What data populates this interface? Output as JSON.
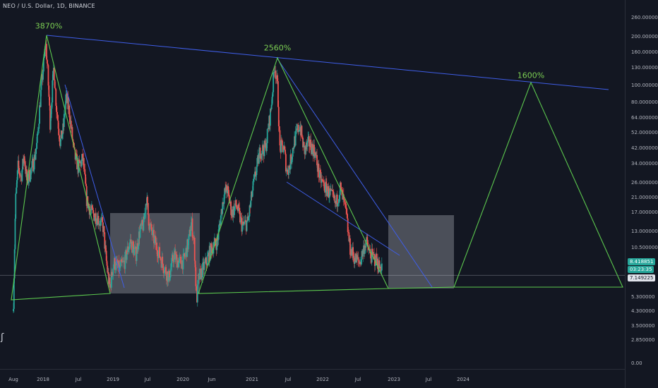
{
  "header": {
    "symbol": "NEO / U.S. Dollar, 1D, BINANCE"
  },
  "chart_data": {
    "type": "candlestick",
    "symbol": "NEO / U.S. Dollar",
    "interval": "1D",
    "exchange": "BINANCE",
    "y_scale": "log",
    "price_ticks": [
      "260.000000",
      "200.000000",
      "160.000000",
      "130.000000",
      "100.000000",
      "80.000000",
      "64.000000",
      "52.000000",
      "42.000000",
      "34.000000",
      "26.000000",
      "21.000000",
      "17.000000",
      "13.000000",
      "10.500000",
      "7.149225",
      "5.300000",
      "4.300000",
      "3.500000",
      "2.850000",
      "0.00"
    ],
    "time_ticks": [
      "Aug",
      "2018",
      "Jul",
      "2019",
      "Jul",
      "2020",
      "Jun",
      "2021",
      "Jul",
      "2022",
      "Jul",
      "2023",
      "Jul",
      "2024"
    ],
    "current_price": "8.418851",
    "countdown": "03:23:35",
    "reference_price": "7.149225",
    "price_path": [
      [
        "2017-08-01",
        5.0
      ],
      [
        "2017-08-12",
        20.0
      ],
      [
        "2017-08-25",
        32.0
      ],
      [
        "2017-09-10",
        28.0
      ],
      [
        "2017-09-25",
        38.0
      ],
      [
        "2017-10-10",
        26.0
      ],
      [
        "2017-10-28",
        30.0
      ],
      [
        "2017-11-15",
        35.0
      ],
      [
        "2017-12-01",
        45.0
      ],
      [
        "2017-12-20",
        90.0
      ],
      [
        "2018-01-15",
        180.0
      ],
      [
        "2018-01-25",
        120.0
      ],
      [
        "2018-02-06",
        60.0
      ],
      [
        "2018-02-25",
        130.0
      ],
      [
        "2018-03-10",
        75.0
      ],
      [
        "2018-03-30",
        45.0
      ],
      [
        "2018-04-15",
        55.0
      ],
      [
        "2018-04-28",
        85.0
      ],
      [
        "2018-05-15",
        70.0
      ],
      [
        "2018-06-10",
        38.0
      ],
      [
        "2018-07-01",
        32.0
      ],
      [
        "2018-07-25",
        36.0
      ],
      [
        "2018-08-15",
        20.0
      ],
      [
        "2018-09-10",
        17.0
      ],
      [
        "2018-10-10",
        16.0
      ],
      [
        "2018-11-10",
        14.0
      ],
      [
        "2018-11-25",
        9.0
      ],
      [
        "2018-12-15",
        5.9
      ],
      [
        "2019-01-05",
        8.5
      ],
      [
        "2019-02-01",
        7.8
      ],
      [
        "2019-03-01",
        8.5
      ],
      [
        "2019-04-01",
        11.5
      ],
      [
        "2019-05-01",
        9.5
      ],
      [
        "2019-05-20",
        13.0
      ],
      [
        "2019-06-10",
        14.5
      ],
      [
        "2019-06-25",
        21.0
      ],
      [
        "2019-07-10",
        14.5
      ],
      [
        "2019-08-01",
        12.0
      ],
      [
        "2019-09-01",
        9.5
      ],
      [
        "2019-09-25",
        8.0
      ],
      [
        "2019-10-20",
        6.9
      ],
      [
        "2019-11-15",
        9.5
      ],
      [
        "2019-12-10",
        8.5
      ],
      [
        "2020-01-05",
        8.7
      ],
      [
        "2020-02-01",
        11.5
      ],
      [
        "2020-02-15",
        15.0
      ],
      [
        "2020-03-01",
        11.0
      ],
      [
        "2020-03-13",
        5.0
      ],
      [
        "2020-03-25",
        6.9
      ],
      [
        "2020-05-01",
        8.5
      ],
      [
        "2020-06-01",
        10.5
      ],
      [
        "2020-07-01",
        11.5
      ],
      [
        "2020-08-01",
        21.0
      ],
      [
        "2020-08-20",
        24.0
      ],
      [
        "2020-09-15",
        17.0
      ],
      [
        "2020-10-10",
        19.0
      ],
      [
        "2020-11-10",
        14.0
      ],
      [
        "2020-12-10",
        15.0
      ],
      [
        "2021-01-10",
        26.0
      ],
      [
        "2021-02-10",
        40.0
      ],
      [
        "2021-03-10",
        42.0
      ],
      [
        "2021-04-05",
        70.0
      ],
      [
        "2021-04-25",
        135.0
      ],
      [
        "2021-05-10",
        95.0
      ],
      [
        "2021-05-20",
        42.0
      ],
      [
        "2021-06-10",
        42.0
      ],
      [
        "2021-06-25",
        30.0
      ],
      [
        "2021-07-10",
        33.0
      ],
      [
        "2021-08-01",
        45.0
      ],
      [
        "2021-09-01",
        58.0
      ],
      [
        "2021-09-25",
        40.0
      ],
      [
        "2021-10-20",
        45.0
      ],
      [
        "2021-11-20",
        40.0
      ],
      [
        "2021-12-15",
        28.0
      ],
      [
        "2022-01-15",
        24.0
      ],
      [
        "2022-02-10",
        22.0
      ],
      [
        "2022-03-10",
        19.0
      ],
      [
        "2022-04-01",
        24.0
      ],
      [
        "2022-05-01",
        17.0
      ],
      [
        "2022-05-20",
        10.5
      ],
      [
        "2022-06-15",
        9.0
      ],
      [
        "2022-07-10",
        8.5
      ],
      [
        "2022-08-10",
        11.5
      ],
      [
        "2022-09-01",
        9.5
      ],
      [
        "2022-10-01",
        8.8
      ],
      [
        "2022-10-20",
        8.0
      ],
      [
        "2022-11-01",
        8.4
      ]
    ]
  },
  "annotations": {
    "peak1_label": "3870%",
    "peak2_label": "2560%",
    "peak3_label": "1600%"
  },
  "colors": {
    "background": "#131722",
    "up": "#26a69a",
    "down": "#ef5350",
    "triangle": "#5cc84e",
    "trendline": "#3f5ee8",
    "zone": "#e0e3eb",
    "pct_text": "#7ccf53"
  },
  "icons": {
    "scale_icon": "bracket-icon"
  }
}
